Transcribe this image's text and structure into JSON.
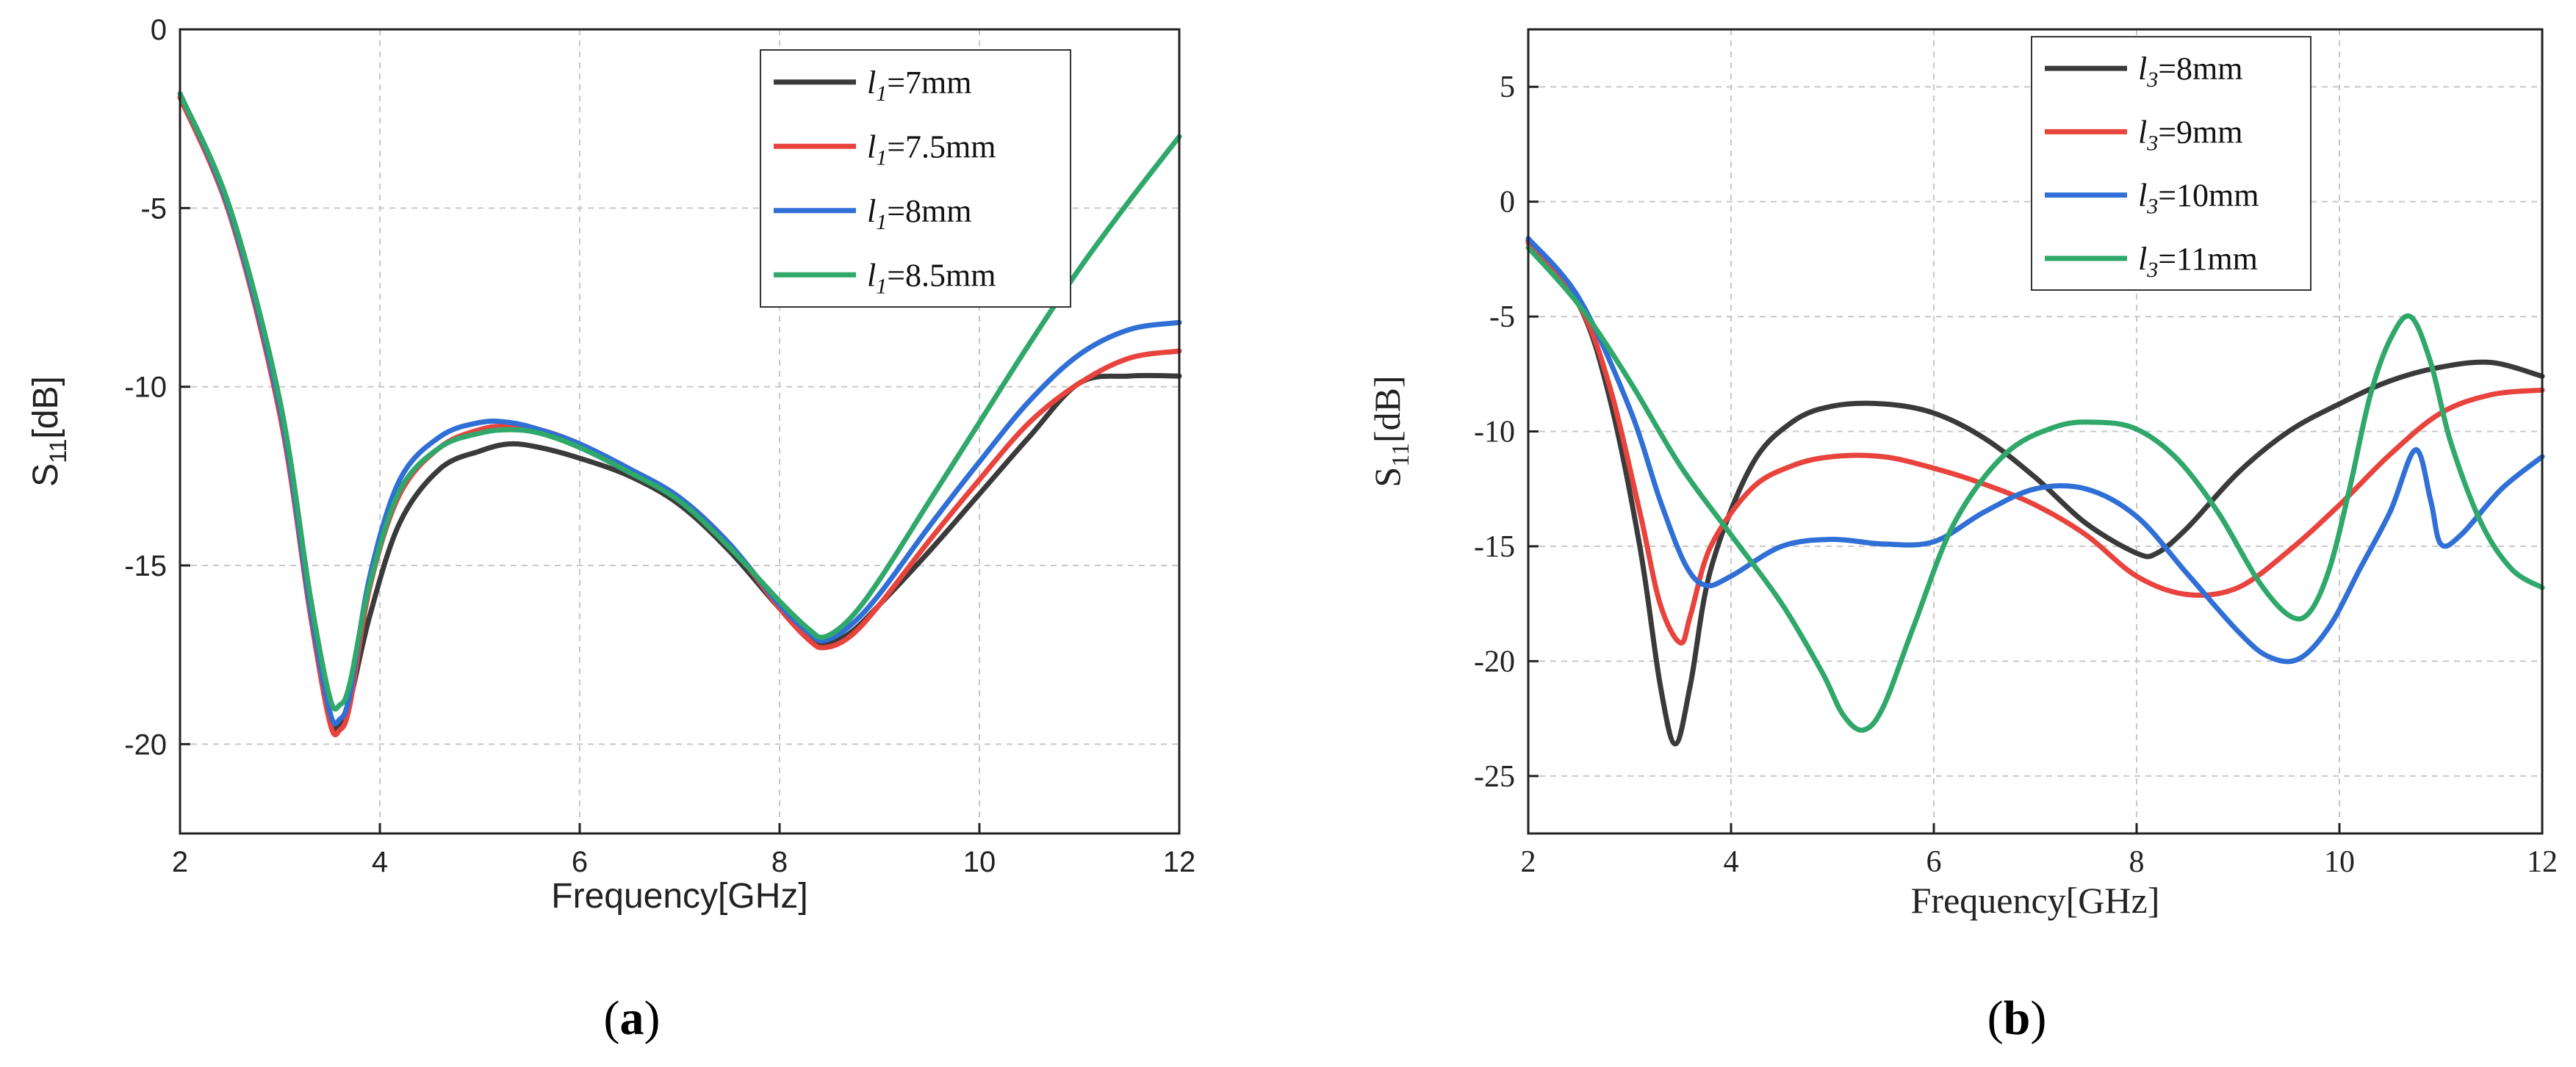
{
  "chart_data": [
    {
      "type": "line",
      "panel_label": "a",
      "xlabel": "Frequency[GHz]",
      "ylabel_main": "S",
      "ylabel_sub": "11",
      "ylabel_rest": "[dB]",
      "xlim": [
        2,
        12
      ],
      "ylim": [
        -22.5,
        0
      ],
      "xticks": [
        2,
        4,
        6,
        8,
        10,
        12
      ],
      "yticks": [
        0,
        -5,
        -10,
        -15,
        -20
      ],
      "grid": true,
      "legend_position": "top-right",
      "series": [
        {
          "name": "7mm",
          "symbol": "l",
          "subscript": "1",
          "color": "#3a3a3a",
          "x": [
            2.0,
            2.5,
            3.0,
            3.3,
            3.5,
            3.6,
            3.7,
            3.9,
            4.2,
            4.6,
            5.0,
            5.3,
            5.6,
            6.0,
            6.5,
            7.0,
            7.5,
            8.0,
            8.3,
            8.45,
            8.7,
            9.0,
            9.5,
            10.0,
            10.5,
            11.0,
            11.5,
            12.0
          ],
          "y": [
            -1.9,
            -5.2,
            -10.7,
            -16.2,
            -19.2,
            -19.5,
            -18.8,
            -16.4,
            -13.8,
            -12.3,
            -11.8,
            -11.6,
            -11.7,
            -12.0,
            -12.5,
            -13.3,
            -14.6,
            -16.2,
            -17.0,
            -17.2,
            -16.9,
            -16.1,
            -14.6,
            -13.0,
            -11.4,
            -9.9,
            -9.7,
            -9.7
          ]
        },
        {
          "name": "7.5mm",
          "symbol": "l",
          "subscript": "1",
          "color": "#e8433c",
          "x": [
            2.0,
            2.5,
            3.0,
            3.3,
            3.5,
            3.6,
            3.7,
            3.9,
            4.2,
            4.6,
            5.0,
            5.3,
            5.6,
            6.0,
            6.5,
            7.0,
            7.5,
            8.0,
            8.3,
            8.45,
            8.7,
            9.0,
            9.5,
            10.0,
            10.5,
            11.0,
            11.5,
            12.0
          ],
          "y": [
            -1.9,
            -5.2,
            -10.8,
            -16.3,
            -19.4,
            -19.6,
            -18.9,
            -15.6,
            -13.0,
            -11.7,
            -11.2,
            -11.1,
            -11.2,
            -11.6,
            -12.3,
            -13.1,
            -14.4,
            -16.2,
            -17.1,
            -17.3,
            -17.0,
            -16.1,
            -14.3,
            -12.6,
            -11.0,
            -9.9,
            -9.2,
            -9.0
          ]
        },
        {
          "name": "8mm",
          "symbol": "l",
          "subscript": "1",
          "color": "#2f6fd6",
          "x": [
            2.0,
            2.5,
            3.0,
            3.3,
            3.5,
            3.6,
            3.7,
            3.9,
            4.2,
            4.6,
            5.0,
            5.3,
            5.6,
            6.0,
            6.5,
            7.0,
            7.5,
            8.0,
            8.3,
            8.45,
            8.7,
            9.0,
            9.5,
            10.0,
            10.5,
            11.0,
            11.5,
            12.0
          ],
          "y": [
            -1.8,
            -5.1,
            -10.6,
            -16.1,
            -19.1,
            -19.3,
            -18.6,
            -15.3,
            -12.6,
            -11.4,
            -11.0,
            -11.0,
            -11.2,
            -11.6,
            -12.3,
            -13.1,
            -14.4,
            -16.1,
            -16.9,
            -17.1,
            -16.7,
            -15.8,
            -13.9,
            -12.1,
            -10.4,
            -9.1,
            -8.4,
            -8.2
          ]
        },
        {
          "name": "8.5mm",
          "symbol": "l",
          "subscript": "1",
          "color": "#2fa86a",
          "x": [
            2.0,
            2.5,
            3.0,
            3.3,
            3.5,
            3.6,
            3.7,
            3.9,
            4.2,
            4.6,
            5.0,
            5.3,
            5.6,
            6.0,
            6.5,
            7.0,
            7.5,
            8.0,
            8.3,
            8.45,
            8.7,
            9.0,
            9.5,
            10.0,
            10.5,
            11.0,
            11.5,
            12.0
          ],
          "y": [
            -1.8,
            -5.0,
            -10.4,
            -15.8,
            -18.7,
            -18.9,
            -18.3,
            -15.5,
            -12.9,
            -11.7,
            -11.3,
            -11.2,
            -11.3,
            -11.7,
            -12.4,
            -13.2,
            -14.5,
            -16.0,
            -16.8,
            -17.0,
            -16.5,
            -15.4,
            -13.2,
            -11.0,
            -8.8,
            -6.7,
            -4.8,
            -3.0
          ]
        }
      ]
    },
    {
      "type": "line",
      "panel_label": "b",
      "xlabel": "Frequency[GHz]",
      "ylabel_main": "S",
      "ylabel_sub": "11",
      "ylabel_rest": "[dB]",
      "xlim": [
        2,
        12
      ],
      "ylim": [
        -27.5,
        7.5
      ],
      "xticks": [
        2,
        4,
        6,
        8,
        10,
        12
      ],
      "yticks": [
        5,
        0,
        -5,
        -10,
        -15,
        -20,
        -25
      ],
      "grid": true,
      "legend_position": "top-center",
      "series": [
        {
          "name": "8mm",
          "symbol": "l",
          "subscript": "3",
          "color": "#3a3a3a",
          "x": [
            2.0,
            2.5,
            2.8,
            3.1,
            3.3,
            3.45,
            3.6,
            3.8,
            4.2,
            4.6,
            5.0,
            5.5,
            6.0,
            6.5,
            7.0,
            7.5,
            8.0,
            8.2,
            8.5,
            9.0,
            9.5,
            10.0,
            10.5,
            11.0,
            11.5,
            12.0
          ],
          "y": [
            -1.7,
            -4.5,
            -8.5,
            -15.0,
            -21.0,
            -23.6,
            -21.0,
            -16.0,
            -11.5,
            -9.6,
            -8.9,
            -8.8,
            -9.2,
            -10.3,
            -12.0,
            -14.0,
            -15.3,
            -15.3,
            -14.2,
            -11.8,
            -10.0,
            -8.8,
            -7.8,
            -7.2,
            -7.0,
            -7.6
          ]
        },
        {
          "name": "9mm",
          "symbol": "l",
          "subscript": "3",
          "color": "#e8433c",
          "x": [
            2.0,
            2.5,
            2.8,
            3.1,
            3.3,
            3.5,
            3.6,
            3.8,
            4.2,
            4.6,
            5.0,
            5.5,
            6.0,
            6.5,
            7.0,
            7.5,
            8.0,
            8.5,
            9.0,
            9.5,
            10.0,
            10.5,
            11.0,
            11.5,
            12.0
          ],
          "y": [
            -1.8,
            -4.5,
            -8.0,
            -13.5,
            -17.5,
            -19.2,
            -18.0,
            -15.0,
            -12.5,
            -11.5,
            -11.1,
            -11.1,
            -11.6,
            -12.3,
            -13.2,
            -14.5,
            -16.3,
            -17.1,
            -16.8,
            -15.2,
            -13.2,
            -11.0,
            -9.2,
            -8.4,
            -8.2
          ]
        },
        {
          "name": "10mm",
          "symbol": "l",
          "subscript": "3",
          "color": "#2f6fd6",
          "x": [
            2.0,
            2.5,
            3.0,
            3.3,
            3.55,
            3.75,
            4.0,
            4.5,
            5.0,
            5.5,
            6.0,
            6.5,
            7.0,
            7.5,
            8.0,
            8.5,
            9.0,
            9.3,
            9.6,
            9.9,
            10.2,
            10.5,
            10.75,
            10.9,
            11.0,
            11.2,
            11.6,
            12.0
          ],
          "y": [
            -1.6,
            -4.2,
            -9.0,
            -13.0,
            -15.8,
            -16.7,
            -16.3,
            -15.0,
            -14.7,
            -14.9,
            -14.8,
            -13.5,
            -12.5,
            -12.5,
            -13.7,
            -16.2,
            -18.7,
            -19.8,
            -19.9,
            -18.5,
            -16.0,
            -13.5,
            -10.8,
            -13.0,
            -14.9,
            -14.5,
            -12.5,
            -11.1
          ]
        },
        {
          "name": "11mm",
          "symbol": "l",
          "subscript": "3",
          "color": "#2fa86a",
          "x": [
            2.0,
            2.5,
            3.0,
            3.5,
            4.0,
            4.5,
            4.9,
            5.1,
            5.3,
            5.5,
            5.8,
            6.2,
            6.7,
            7.2,
            7.6,
            8.0,
            8.4,
            8.8,
            9.2,
            9.5,
            9.7,
            9.9,
            10.1,
            10.3,
            10.5,
            10.7,
            10.9,
            11.1,
            11.4,
            11.7,
            12.0
          ],
          "y": [
            -2.0,
            -4.5,
            -7.8,
            -11.5,
            -14.5,
            -17.5,
            -20.5,
            -22.3,
            -23.0,
            -22.0,
            -18.5,
            -14.0,
            -11.0,
            -9.8,
            -9.6,
            -9.9,
            -11.2,
            -13.5,
            -16.5,
            -18.0,
            -17.9,
            -16.0,
            -12.5,
            -8.5,
            -6.0,
            -5.0,
            -7.0,
            -10.5,
            -14.0,
            -16.0,
            -16.8
          ]
        }
      ]
    }
  ]
}
